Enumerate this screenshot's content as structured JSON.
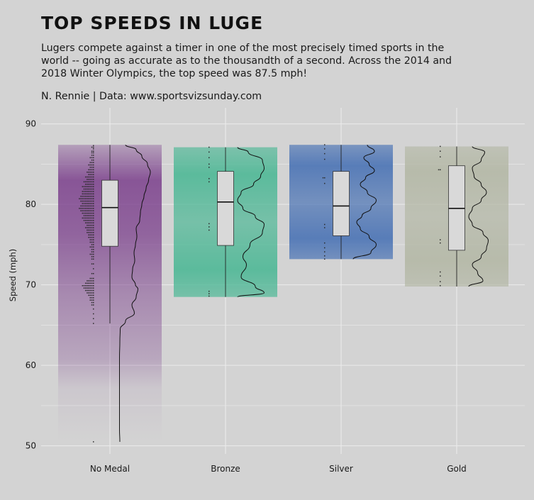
{
  "header": {
    "title": "TOP SPEEDS IN LUGE",
    "subtitle": "Lugers compete against a timer in one of the most precisely timed sports in the world -- going as accurate as to the thousandth of a second. Across the 2014 and 2018 Winter Olympics, the top speed was 87.5 mph!",
    "caption": "N. Rennie | Data: www.sportsvizsunday.com"
  },
  "chart_data": {
    "type": "box",
    "categories": [
      "No Medal",
      "Bronze",
      "Silver",
      "Gold"
    ],
    "ylabel": "Speed (mph)",
    "xlabel": "",
    "ylim": [
      49,
      92
    ],
    "yticks": [
      50,
      60,
      70,
      80,
      90
    ],
    "grid": true,
    "groups": [
      {
        "name": "No Medal",
        "color": "#7b3f8c",
        "min": 50.5,
        "q1": 74.8,
        "median": 79.6,
        "q3": 83.0,
        "max": 87.4,
        "whisker_low": 65.2,
        "whisker_high": 87.4,
        "points": [
          87.3,
          87.1,
          86.9,
          86.6,
          86.4,
          86.1,
          85.8,
          85.5,
          85.2,
          84.9,
          84.6,
          84.3,
          84.0,
          83.7,
          83.4,
          83.1,
          82.8,
          82.5,
          82.2,
          81.9,
          81.6,
          81.3,
          81.0,
          80.7,
          80.4,
          80.1,
          79.8,
          79.5,
          79.2,
          78.9,
          78.6,
          78.3,
          78.0,
          77.7,
          77.4,
          77.1,
          76.8,
          76.5,
          76.2,
          75.9,
          75.6,
          75.3,
          75.0,
          74.7,
          74.4,
          74.1,
          73.8,
          73.5,
          73.2,
          72.6,
          72.0,
          71.4,
          70.8,
          70.5,
          70.2,
          69.9,
          69.6,
          69.3,
          69.0,
          68.7,
          68.4,
          68.1,
          67.8,
          67.5,
          67.0,
          66.4,
          65.8,
          65.2,
          50.5
        ],
        "point_counts": [
          1,
          2,
          1,
          2,
          2,
          2,
          3,
          2,
          3,
          4,
          3,
          4,
          5,
          4,
          6,
          5,
          7,
          6,
          8,
          7,
          8,
          8,
          9,
          10,
          9,
          8,
          9,
          10,
          9,
          8,
          7,
          8,
          7,
          6,
          5,
          6,
          5,
          5,
          4,
          4,
          3,
          3,
          2,
          3,
          2,
          2,
          3,
          2,
          2,
          2,
          1,
          2,
          3,
          5,
          6,
          8,
          7,
          6,
          5,
          4,
          3,
          3,
          2,
          2,
          1,
          1,
          1,
          1,
          1
        ],
        "density": [
          [
            50.5,
            0.04
          ],
          [
            52,
            0.03
          ],
          [
            55,
            0.03
          ],
          [
            58,
            0.03
          ],
          [
            61,
            0.03
          ],
          [
            63,
            0.04
          ],
          [
            64.5,
            0.05
          ],
          [
            65.5,
            0.2
          ],
          [
            66.5,
            0.45
          ],
          [
            67.5,
            0.38
          ],
          [
            68.5,
            0.5
          ],
          [
            69.5,
            0.55
          ],
          [
            70,
            0.48
          ],
          [
            71,
            0.38
          ],
          [
            72,
            0.4
          ],
          [
            73,
            0.46
          ],
          [
            74,
            0.44
          ],
          [
            75,
            0.48
          ],
          [
            76,
            0.52
          ],
          [
            77,
            0.5
          ],
          [
            78,
            0.6
          ],
          [
            79,
            0.62
          ],
          [
            80,
            0.66
          ],
          [
            81,
            0.72
          ],
          [
            82,
            0.78
          ],
          [
            83,
            0.85
          ],
          [
            84,
            0.9
          ],
          [
            85,
            0.82
          ],
          [
            86,
            0.66
          ],
          [
            86.8,
            0.5
          ],
          [
            87.4,
            0.2
          ]
        ]
      },
      {
        "name": "Bronze",
        "color": "#4eb896",
        "min": 68.5,
        "q1": 74.9,
        "median": 80.3,
        "q3": 84.1,
        "max": 87.1,
        "whisker_low": 68.5,
        "whisker_high": 87.1,
        "points": [
          87.1,
          86.5,
          85.8,
          85.0,
          84.6,
          83.2,
          82.8,
          77.6,
          77.2,
          76.8,
          69.2,
          68.9,
          68.6
        ],
        "point_counts": [
          1,
          1,
          1,
          1,
          1,
          1,
          1,
          1,
          1,
          1,
          1,
          1,
          1
        ],
        "density": [
          [
            68.5,
            0.1
          ],
          [
            69,
            0.85
          ],
          [
            69.8,
            0.6
          ],
          [
            71,
            0.2
          ],
          [
            72.5,
            0.35
          ],
          [
            73.5,
            0.25
          ],
          [
            75,
            0.45
          ],
          [
            76.5,
            0.8
          ],
          [
            77.5,
            0.85
          ],
          [
            78.5,
            0.6
          ],
          [
            79.5,
            0.25
          ],
          [
            80.5,
            0.1
          ],
          [
            81.5,
            0.2
          ],
          [
            82.5,
            0.55
          ],
          [
            83.5,
            0.75
          ],
          [
            84.5,
            0.85
          ],
          [
            85.5,
            0.8
          ],
          [
            86.5,
            0.4
          ],
          [
            87.1,
            0.1
          ]
        ]
      },
      {
        "name": "Silver",
        "color": "#4a73b5",
        "min": 73.2,
        "q1": 76.1,
        "median": 79.8,
        "q3": 84.1,
        "max": 87.4,
        "whisker_low": 73.2,
        "whisker_high": 87.4,
        "points": [
          87.4,
          86.9,
          86.3,
          85.6,
          83.3,
          82.6,
          77.5,
          77.1,
          75.2,
          74.6,
          74.1,
          73.6,
          73.2
        ],
        "point_counts": [
          1,
          1,
          1,
          1,
          2,
          1,
          1,
          1,
          1,
          1,
          1,
          1,
          1
        ],
        "density": [
          [
            73.2,
            0.1
          ],
          [
            74,
            0.6
          ],
          [
            75,
            0.75
          ],
          [
            76,
            0.55
          ],
          [
            77,
            0.3
          ],
          [
            77.8,
            0.2
          ],
          [
            78.6,
            0.35
          ],
          [
            79.5,
            0.6
          ],
          [
            80.5,
            0.75
          ],
          [
            81.5,
            0.5
          ],
          [
            82.5,
            0.3
          ],
          [
            83.3,
            0.45
          ],
          [
            84.2,
            0.7
          ],
          [
            85,
            0.55
          ],
          [
            85.8,
            0.4
          ],
          [
            86.6,
            0.7
          ],
          [
            87.4,
            0.5
          ]
        ]
      },
      {
        "name": "Gold",
        "color": "#b4b8a6",
        "min": 69.8,
        "q1": 74.3,
        "median": 79.5,
        "q3": 84.8,
        "max": 87.2,
        "whisker_low": 69.8,
        "whisker_high": 87.2,
        "points": [
          87.2,
          86.6,
          85.9,
          84.3,
          75.6,
          75.2,
          71.6,
          71.1,
          70.4,
          69.9
        ],
        "point_counts": [
          1,
          1,
          1,
          2,
          1,
          1,
          1,
          1,
          1,
          1
        ],
        "density": [
          [
            69.8,
            0.1
          ],
          [
            70.5,
            0.5
          ],
          [
            71.5,
            0.35
          ],
          [
            72.5,
            0.2
          ],
          [
            73.5,
            0.45
          ],
          [
            74.5,
            0.6
          ],
          [
            75.5,
            0.65
          ],
          [
            76.5,
            0.5
          ],
          [
            77.5,
            0.2
          ],
          [
            78.5,
            0.1
          ],
          [
            79.5,
            0.2
          ],
          [
            80.5,
            0.45
          ],
          [
            81.5,
            0.6
          ],
          [
            82.5,
            0.45
          ],
          [
            83.5,
            0.25
          ],
          [
            84.5,
            0.2
          ],
          [
            85.5,
            0.45
          ],
          [
            86.5,
            0.55
          ],
          [
            87.2,
            0.2
          ]
        ]
      }
    ]
  }
}
